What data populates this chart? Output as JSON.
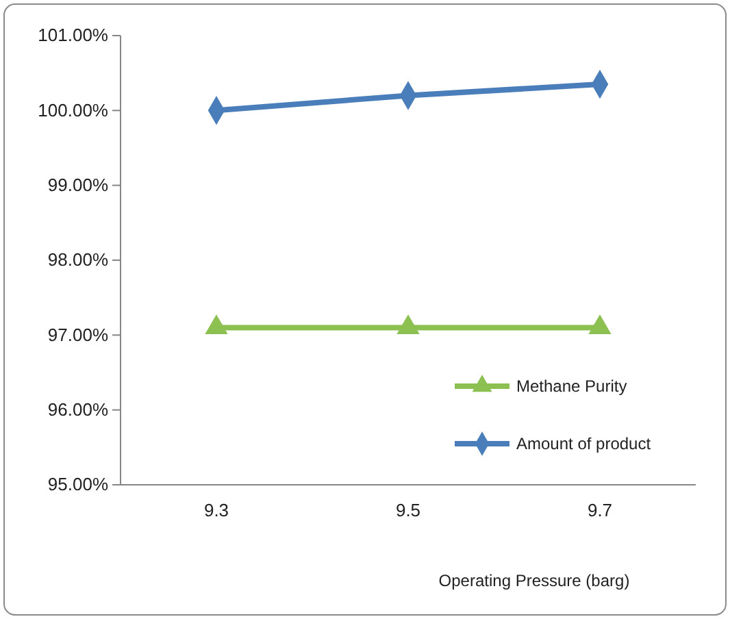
{
  "chart_data": {
    "type": "line",
    "xlabel": "Operating Pressure (barg)",
    "categories": [
      "9.3",
      "9.5",
      "9.7"
    ],
    "ylim": [
      95,
      101
    ],
    "yticks": [
      {
        "value": 95,
        "label": "95.00%"
      },
      {
        "value": 96,
        "label": "96.00%"
      },
      {
        "value": 97,
        "label": "97.00%"
      },
      {
        "value": 98,
        "label": "98.00%"
      },
      {
        "value": 99,
        "label": "99.00%"
      },
      {
        "value": 100,
        "label": "100.00%"
      },
      {
        "value": 101,
        "label": "101.00%"
      }
    ],
    "grid": false,
    "legend": "bottom right",
    "line_style": "solid",
    "series": [
      {
        "name": "Methane Purity",
        "color": "#8cc152",
        "marker": "triangle",
        "values": [
          97.1,
          97.1,
          97.1
        ]
      },
      {
        "name": "Amount of product",
        "color": "#4a7ebb",
        "marker": "diamond",
        "values": [
          100,
          100.2,
          100.35
        ]
      }
    ]
  }
}
